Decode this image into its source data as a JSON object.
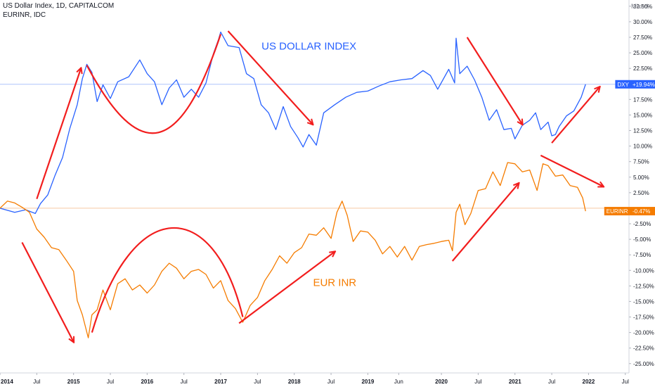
{
  "header": {
    "title": "US Dollar Index, 1D, CAPITALCOM",
    "subtitle": "EURINR, IDC",
    "scale_mode": "Mixed"
  },
  "colors": {
    "dxy": "#2962ff",
    "eurinr": "#f57c00",
    "arrow": "#f21d1d",
    "zero_line_dxy": "#aec4fb",
    "zero_line_eur": "#f8c9a2"
  },
  "chart_data": {
    "type": "line",
    "title": "US Dollar Index, 1D, CAPITALCOM",
    "xlim": [
      2014.0,
      2022.55
    ],
    "ylim": [
      -26.5,
      33.5
    ],
    "x_ticks": [
      {
        "label": "2014",
        "value": 2014.0,
        "bold": true
      },
      {
        "label": "Jul",
        "value": 2014.5,
        "bold": false
      },
      {
        "label": "2015",
        "value": 2015.0,
        "bold": true
      },
      {
        "label": "Jul",
        "value": 2015.5,
        "bold": false
      },
      {
        "label": "2016",
        "value": 2016.0,
        "bold": true
      },
      {
        "label": "Jul",
        "value": 2016.5,
        "bold": false
      },
      {
        "label": "2017",
        "value": 2017.0,
        "bold": true
      },
      {
        "label": "Jul",
        "value": 2017.5,
        "bold": false
      },
      {
        "label": "2018",
        "value": 2018.0,
        "bold": true
      },
      {
        "label": "Jul",
        "value": 2018.5,
        "bold": false
      },
      {
        "label": "2019",
        "value": 2019.0,
        "bold": true
      },
      {
        "label": "Jun",
        "value": 2019.42,
        "bold": false
      },
      {
        "label": "2020",
        "value": 2020.0,
        "bold": true
      },
      {
        "label": "Jul",
        "value": 2020.5,
        "bold": false
      },
      {
        "label": "2021",
        "value": 2021.0,
        "bold": true
      },
      {
        "label": "Jul",
        "value": 2021.5,
        "bold": false
      },
      {
        "label": "2022",
        "value": 2022.0,
        "bold": true
      },
      {
        "label": "Jul",
        "value": 2022.5,
        "bold": false
      }
    ],
    "y_ticks": [
      {
        "label": "32.50%",
        "value": 32.5
      },
      {
        "label": "30.00%",
        "value": 30
      },
      {
        "label": "27.50%",
        "value": 27.5
      },
      {
        "label": "25.00%",
        "value": 25
      },
      {
        "label": "22.50%",
        "value": 22.5
      },
      {
        "label": "17.50%",
        "value": 17.5
      },
      {
        "label": "15.00%",
        "value": 15
      },
      {
        "label": "12.50%",
        "value": 12.5
      },
      {
        "label": "10.00%",
        "value": 10
      },
      {
        "label": "7.50%",
        "value": 7.5
      },
      {
        "label": "5.00%",
        "value": 5
      },
      {
        "label": "2.50%",
        "value": 2.5
      },
      {
        "label": "-2.50%",
        "value": -2.5
      },
      {
        "label": "-5.00%",
        "value": -5
      },
      {
        "label": "-7.50%",
        "value": -7.5
      },
      {
        "label": "-10.00%",
        "value": -10
      },
      {
        "label": "-12.50%",
        "value": -12.5
      },
      {
        "label": "-15.00%",
        "value": -15
      },
      {
        "label": "-17.50%",
        "value": -17.5
      },
      {
        "label": "-20.00%",
        "value": -20
      },
      {
        "label": "-22.50%",
        "value": -22.5
      },
      {
        "label": "-25.00%",
        "value": -25
      }
    ],
    "series": [
      {
        "name": "DXY",
        "last_label": "DXY",
        "last_value_label": "+19.94%",
        "last_value": 19.94,
        "points": [
          [
            2014.0,
            0.0
          ],
          [
            2014.2,
            -0.3
          ],
          [
            2014.35,
            -0.6
          ],
          [
            2014.48,
            -0.5
          ],
          [
            2014.55,
            0.4
          ],
          [
            2014.65,
            2.5
          ],
          [
            2014.75,
            5.0
          ],
          [
            2014.85,
            8.5
          ],
          [
            2014.95,
            12.5
          ],
          [
            2015.05,
            17.0
          ],
          [
            2015.12,
            20.5
          ],
          [
            2015.18,
            23.5
          ],
          [
            2015.25,
            21.5
          ],
          [
            2015.32,
            17.5
          ],
          [
            2015.4,
            19.5
          ],
          [
            2015.5,
            18.0
          ],
          [
            2015.6,
            20.0
          ],
          [
            2015.75,
            21.5
          ],
          [
            2015.9,
            23.5
          ],
          [
            2016.0,
            22.0
          ],
          [
            2016.1,
            20.0
          ],
          [
            2016.2,
            17.0
          ],
          [
            2016.3,
            19.0
          ],
          [
            2016.4,
            21.0
          ],
          [
            2016.5,
            17.5
          ],
          [
            2016.6,
            19.5
          ],
          [
            2016.7,
            17.5
          ],
          [
            2016.8,
            20.5
          ],
          [
            2016.9,
            24.5
          ],
          [
            2016.97,
            27.5
          ],
          [
            2017.0,
            28.0
          ],
          [
            2017.1,
            26.5
          ],
          [
            2017.25,
            25.5
          ],
          [
            2017.35,
            22.0
          ],
          [
            2017.45,
            20.5
          ],
          [
            2017.55,
            17.0
          ],
          [
            2017.65,
            15.0
          ],
          [
            2017.75,
            13.0
          ],
          [
            2017.85,
            16.0
          ],
          [
            2017.95,
            13.5
          ],
          [
            2018.05,
            11.0
          ],
          [
            2018.12,
            10.2
          ],
          [
            2018.2,
            11.5
          ],
          [
            2018.3,
            10.5
          ],
          [
            2018.4,
            15.0
          ],
          [
            2018.55,
            17.0
          ],
          [
            2018.7,
            17.5
          ],
          [
            2018.85,
            19.0
          ],
          [
            2019.0,
            18.5
          ],
          [
            2019.15,
            20.0
          ],
          [
            2019.3,
            20.0
          ],
          [
            2019.45,
            21.0
          ],
          [
            2019.6,
            20.5
          ],
          [
            2019.75,
            22.5
          ],
          [
            2019.85,
            21.0
          ],
          [
            2019.95,
            19.5
          ],
          [
            2020.1,
            22.0
          ],
          [
            2020.18,
            20.5
          ],
          [
            2020.2,
            27.0
          ],
          [
            2020.25,
            22.0
          ],
          [
            2020.35,
            22.5
          ],
          [
            2020.45,
            21.0
          ],
          [
            2020.55,
            17.5
          ],
          [
            2020.65,
            14.5
          ],
          [
            2020.75,
            15.5
          ],
          [
            2020.85,
            13.0
          ],
          [
            2020.95,
            12.5
          ],
          [
            2021.0,
            11.5
          ],
          [
            2021.1,
            13.0
          ],
          [
            2021.2,
            14.5
          ],
          [
            2021.28,
            15.0
          ],
          [
            2021.35,
            13.0
          ],
          [
            2021.45,
            13.5
          ],
          [
            2021.5,
            12.0
          ],
          [
            2021.55,
            11.5
          ],
          [
            2021.6,
            13.5
          ],
          [
            2021.7,
            14.5
          ],
          [
            2021.8,
            16.0
          ],
          [
            2021.9,
            17.5
          ],
          [
            2021.96,
            19.94
          ]
        ]
      },
      {
        "name": "EURINR",
        "last_label": "EURINR",
        "last_value_label": "-0.47%",
        "last_value": -0.47,
        "points": [
          [
            2014.0,
            0.0
          ],
          [
            2014.1,
            1.5
          ],
          [
            2014.2,
            0.5
          ],
          [
            2014.3,
            0.5
          ],
          [
            2014.4,
            -1.0
          ],
          [
            2014.5,
            -3.0
          ],
          [
            2014.6,
            -5.0
          ],
          [
            2014.7,
            -6.0
          ],
          [
            2014.8,
            -7.0
          ],
          [
            2014.9,
            -8.0
          ],
          [
            2015.0,
            -10.5
          ],
          [
            2015.05,
            -14.5
          ],
          [
            2015.12,
            -17.5
          ],
          [
            2015.2,
            -20.5
          ],
          [
            2015.25,
            -17.5
          ],
          [
            2015.32,
            -16.0
          ],
          [
            2015.4,
            -13.5
          ],
          [
            2015.5,
            -16.0
          ],
          [
            2015.6,
            -12.5
          ],
          [
            2015.7,
            -11.0
          ],
          [
            2015.8,
            -13.5
          ],
          [
            2015.9,
            -12.0
          ],
          [
            2016.0,
            -14.0
          ],
          [
            2016.1,
            -12.0
          ],
          [
            2016.2,
            -10.5
          ],
          [
            2016.3,
            -8.5
          ],
          [
            2016.4,
            -10.0
          ],
          [
            2016.5,
            -11.0
          ],
          [
            2016.6,
            -10.5
          ],
          [
            2016.7,
            -9.5
          ],
          [
            2016.8,
            -11.0
          ],
          [
            2016.9,
            -12.5
          ],
          [
            2017.0,
            -12.0
          ],
          [
            2017.1,
            -14.5
          ],
          [
            2017.2,
            -16.5
          ],
          [
            2017.3,
            -18.0
          ],
          [
            2017.4,
            -16.0
          ],
          [
            2017.5,
            -14.0
          ],
          [
            2017.6,
            -12.0
          ],
          [
            2017.7,
            -9.5
          ],
          [
            2017.8,
            -8.0
          ],
          [
            2017.9,
            -8.5
          ],
          [
            2018.0,
            -7.5
          ],
          [
            2018.1,
            -6.0
          ],
          [
            2018.2,
            -4.5
          ],
          [
            2018.3,
            -4.0
          ],
          [
            2018.4,
            -3.5
          ],
          [
            2018.5,
            -4.5
          ],
          [
            2018.58,
            -1.0
          ],
          [
            2018.65,
            1.5
          ],
          [
            2018.72,
            -1.5
          ],
          [
            2018.8,
            -5.0
          ],
          [
            2018.9,
            -4.0
          ],
          [
            2019.0,
            -3.5
          ],
          [
            2019.1,
            -5.5
          ],
          [
            2019.2,
            -7.0
          ],
          [
            2019.3,
            -6.5
          ],
          [
            2019.4,
            -7.5
          ],
          [
            2019.5,
            -6.5
          ],
          [
            2019.6,
            -8.0
          ],
          [
            2019.7,
            -6.5
          ],
          [
            2019.8,
            -5.5
          ],
          [
            2019.9,
            -6.0
          ],
          [
            2020.0,
            -5.0
          ],
          [
            2020.1,
            -5.5
          ],
          [
            2020.15,
            -6.5
          ],
          [
            2020.2,
            -1.0
          ],
          [
            2020.25,
            1.0
          ],
          [
            2020.32,
            -3.0
          ],
          [
            2020.4,
            -0.5
          ],
          [
            2020.5,
            2.5
          ],
          [
            2020.6,
            3.5
          ],
          [
            2020.7,
            5.5
          ],
          [
            2020.8,
            4.0
          ],
          [
            2020.9,
            7.0
          ],
          [
            2021.0,
            7.5
          ],
          [
            2021.1,
            5.5
          ],
          [
            2021.2,
            6.5
          ],
          [
            2021.3,
            2.5
          ],
          [
            2021.38,
            7.5
          ],
          [
            2021.45,
            6.5
          ],
          [
            2021.55,
            5.5
          ],
          [
            2021.65,
            5.0
          ],
          [
            2021.75,
            4.0
          ],
          [
            2021.85,
            3.0
          ],
          [
            2021.92,
            2.0
          ],
          [
            2021.96,
            -0.47
          ]
        ]
      }
    ],
    "annotations": [
      {
        "text": "US DOLLAR INDEX",
        "x": 2018.2,
        "y": 25.5,
        "color": "#2962ff"
      },
      {
        "text": "EUR INR",
        "x": 2018.55,
        "y": -12.5,
        "color": "#f57c00"
      }
    ],
    "arrows": [
      [
        2014.5,
        1.5,
        2015.1,
        22.5
      ],
      [
        2014.3,
        -5.5,
        2015.0,
        -21.5
      ],
      [
        2017.1,
        28.5,
        2018.25,
        13.5
      ],
      [
        2017.25,
        -18.5,
        2018.55,
        -7.0
      ],
      [
        2020.35,
        27.5,
        2021.1,
        13.5
      ],
      [
        2020.15,
        -8.5,
        2021.05,
        4.0
      ],
      [
        2021.5,
        10.5,
        2022.15,
        19.5
      ],
      [
        2021.35,
        8.5,
        2022.2,
        3.5
      ]
    ],
    "curves": [
      [
        2015.18,
        23.0,
        2015.9,
        7.0,
        2016.45,
        8.5,
        2017.0,
        28.0
      ],
      [
        2015.25,
        -20.0,
        2015.8,
        2.0,
        2016.9,
        2.0,
        2017.3,
        -17.5
      ]
    ],
    "grid": false,
    "legend": "none"
  }
}
